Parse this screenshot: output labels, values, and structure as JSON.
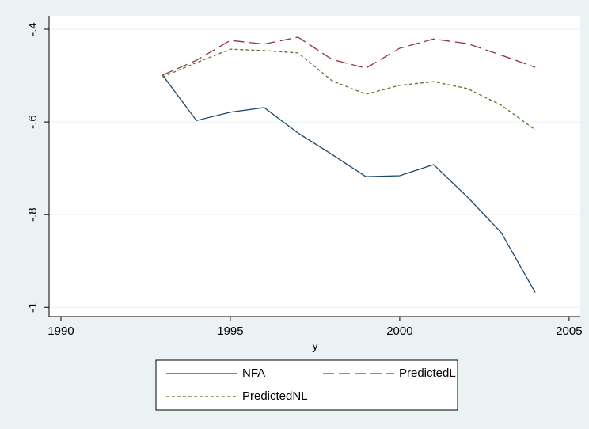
{
  "chart_data": {
    "type": "line",
    "x": [
      1993,
      1994,
      1995,
      1996,
      1997,
      1998,
      1999,
      2000,
      2001,
      2002,
      2003,
      2004
    ],
    "series": [
      {
        "name": "NFA",
        "color": "#1a476f",
        "dash": "solid",
        "values": [
          -0.499,
          -0.597,
          -0.579,
          -0.569,
          -0.624,
          -0.67,
          -0.718,
          -0.716,
          -0.692,
          -0.762,
          -0.839,
          -0.968
        ]
      },
      {
        "name": "PredictedL",
        "color": "#90353b",
        "dash": "long",
        "values": [
          -0.499,
          -0.467,
          -0.424,
          -0.432,
          -0.417,
          -0.465,
          -0.484,
          -0.441,
          -0.421,
          -0.431,
          -0.456,
          -0.482
        ]
      },
      {
        "name": "PredictedNL",
        "color": "#55752f",
        "dash": "short",
        "values": [
          -0.503,
          -0.472,
          -0.443,
          -0.446,
          -0.451,
          -0.511,
          -0.54,
          -0.521,
          -0.513,
          -0.528,
          -0.564,
          -0.617
        ]
      }
    ],
    "xlabel": "y",
    "xlim": [
      1989.65,
      2005.33
    ],
    "xticks": [
      1990,
      1995,
      2000,
      2005
    ],
    "ylim": [
      -1.02,
      -0.371
    ],
    "yticks": [
      {
        "value": -0.4,
        "label": "-.4"
      },
      {
        "value": -0.6,
        "label": "-.6"
      },
      {
        "value": -0.8,
        "label": "-.8"
      },
      -1
    ],
    "grid": true,
    "legend_position": "bottom"
  }
}
